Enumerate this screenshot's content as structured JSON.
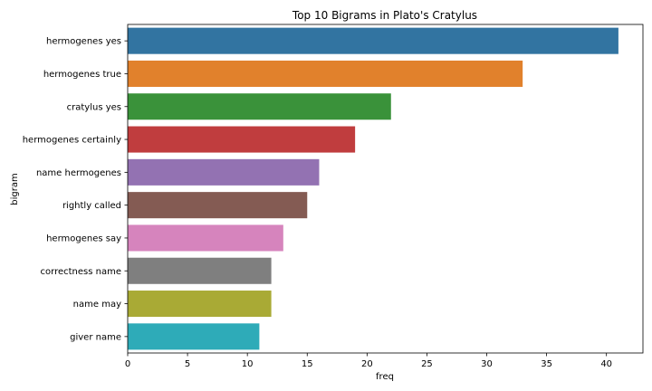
{
  "chart_data": {
    "type": "bar",
    "orientation": "horizontal",
    "title": "Top 10 Bigrams in Plato's Cratylus",
    "xlabel": "freq",
    "ylabel": "bigram",
    "categories": [
      "hermogenes yes",
      "hermogenes true",
      "cratylus yes",
      "hermogenes certainly",
      "name hermogenes",
      "rightly called",
      "hermogenes say",
      "correctness name",
      "name may",
      "giver name"
    ],
    "values": [
      41,
      33,
      22,
      19,
      16,
      15,
      13,
      12,
      12,
      11
    ],
    "colors": [
      "#3274a1",
      "#e1812c",
      "#3a923a",
      "#c03d3e",
      "#9372b2",
      "#845b53",
      "#d684bd",
      "#7f7f7f",
      "#a9aa35",
      "#2eabb8"
    ],
    "xlim": [
      0,
      43.05
    ],
    "xticks": [
      0,
      5,
      10,
      15,
      20,
      25,
      30,
      35,
      40
    ],
    "grid": false,
    "legend": "none"
  }
}
